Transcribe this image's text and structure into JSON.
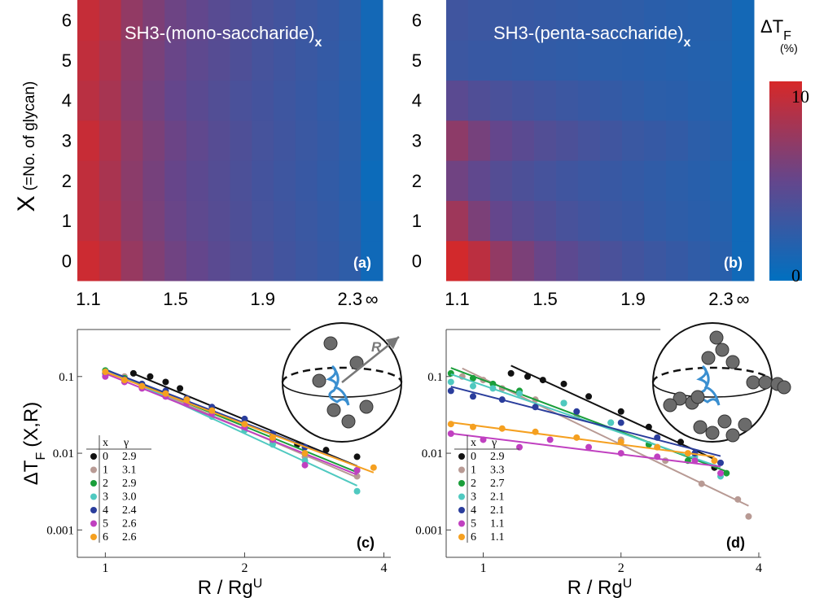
{
  "chart_data": [
    {
      "type": "heatmap",
      "title": "SH3-(mono-saccharide)",
      "title_sub": "x",
      "panel_label": "(a)",
      "y_label": "X",
      "y_label_note": "(=No. of glycan)",
      "categories": [
        "1.1",
        null,
        null,
        null,
        "1.5",
        null,
        null,
        null,
        "1.9",
        null,
        null,
        null,
        "2.3",
        "∞"
      ],
      "ylim": [
        -0.5,
        6.5
      ],
      "yticks": [
        0,
        1,
        2,
        3,
        4,
        5,
        6
      ],
      "zlim": [
        0,
        10
      ],
      "values": [
        [
          9.5,
          8.8,
          7.2,
          6.2,
          5.5,
          5.0,
          4.5,
          4.1,
          3.7,
          3.3,
          3.0,
          2.7,
          2.3,
          0.8
        ],
        [
          9.0,
          8.2,
          6.8,
          5.9,
          5.2,
          4.7,
          4.3,
          3.9,
          3.5,
          3.2,
          2.9,
          2.6,
          2.2,
          0.8
        ],
        [
          9.0,
          8.0,
          6.7,
          5.8,
          5.1,
          4.6,
          4.2,
          3.8,
          3.4,
          3.1,
          2.8,
          2.5,
          2.1,
          0.6
        ],
        [
          9.3,
          8.3,
          6.9,
          6.0,
          5.3,
          4.8,
          4.3,
          3.9,
          3.5,
          3.2,
          2.9,
          2.6,
          2.2,
          0.8
        ],
        [
          8.7,
          7.9,
          6.6,
          5.7,
          5.0,
          4.5,
          4.1,
          3.7,
          3.4,
          3.1,
          2.8,
          2.5,
          2.1,
          0.9
        ],
        [
          9.0,
          8.2,
          6.8,
          5.9,
          5.2,
          4.7,
          4.3,
          3.9,
          3.5,
          3.2,
          2.9,
          2.6,
          2.2,
          1.0
        ],
        [
          9.2,
          8.5,
          7.0,
          6.1,
          5.4,
          4.9,
          4.4,
          4.0,
          3.6,
          3.3,
          3.0,
          2.7,
          2.3,
          1.0
        ]
      ]
    },
    {
      "type": "heatmap",
      "title": "SH3-(penta-saccharide)",
      "title_sub": "x",
      "panel_label": "(b)",
      "categories": [
        "1.1",
        null,
        null,
        null,
        "1.5",
        null,
        null,
        null,
        "1.9",
        null,
        null,
        null,
        "2.3",
        "∞"
      ],
      "ylim": [
        -0.5,
        6.5
      ],
      "yticks": [
        0,
        1,
        2,
        3,
        4,
        5,
        6
      ],
      "zlim": [
        0,
        10
      ],
      "colorbar": {
        "label": "ΔT",
        "label_sub": "F",
        "unit": "(%)",
        "zticks": [
          0,
          10
        ]
      },
      "values": [
        [
          9.8,
          8.8,
          7.0,
          6.0,
          5.2,
          4.6,
          4.1,
          3.7,
          3.3,
          3.0,
          2.7,
          2.4,
          2.0,
          0.8
        ],
        [
          7.5,
          6.0,
          5.0,
          4.4,
          4.0,
          3.6,
          3.3,
          3.0,
          2.8,
          2.5,
          2.3,
          2.1,
          1.8,
          0.8
        ],
        [
          5.5,
          4.8,
          4.2,
          3.8,
          3.5,
          3.2,
          3.0,
          2.8,
          2.6,
          2.4,
          2.2,
          2.0,
          1.7,
          0.8
        ],
        [
          6.8,
          5.8,
          5.0,
          4.5,
          4.1,
          3.8,
          3.5,
          3.2,
          2.9,
          2.7,
          2.5,
          2.2,
          1.9,
          0.9
        ],
        [
          4.5,
          4.0,
          3.7,
          3.4,
          3.2,
          3.0,
          2.8,
          2.6,
          2.4,
          2.2,
          2.1,
          1.9,
          1.7,
          0.9
        ],
        [
          3.0,
          2.8,
          2.7,
          2.6,
          2.5,
          2.4,
          2.3,
          2.2,
          2.1,
          2.0,
          1.9,
          1.8,
          1.6,
          1.0
        ],
        [
          3.2,
          3.0,
          2.9,
          2.8,
          2.7,
          2.6,
          2.5,
          2.4,
          2.3,
          2.1,
          2.0,
          1.9,
          1.7,
          1.0
        ]
      ]
    },
    {
      "type": "scatter",
      "panel_label": "(c)",
      "inset_label": "R",
      "y_label": "ΔT",
      "y_label_sub": "F",
      "y_label_rest": "(X,R)",
      "x_label": "R / Rg",
      "x_label_sup": "U",
      "x_log": true,
      "y_log": true,
      "xlim": [
        0.87,
        4.14
      ],
      "ylim": [
        0.00044,
        0.41
      ],
      "xticks": [
        1,
        2,
        4
      ],
      "yticks": [
        0.001,
        0.01,
        0.1
      ],
      "legend_headers": [
        "x",
        "γ"
      ],
      "series": [
        {
          "name": "0",
          "color": "#111111",
          "gamma": 2.9,
          "x": [
            1.15,
            1.25,
            1.35,
            1.45,
            1.7,
            2.0,
            2.3,
            2.6,
            3.0,
            3.5
          ],
          "values": [
            0.11,
            0.1,
            0.085,
            0.07,
            0.035,
            0.021,
            0.015,
            0.013,
            0.011,
            0.009
          ]
        },
        {
          "name": "1",
          "color": "#b89a94",
          "gamma": 3.1,
          "x": [
            1.0,
            1.1,
            1.2,
            1.35,
            1.5,
            1.7,
            2.0,
            2.3,
            2.7,
            3.5
          ],
          "values": [
            0.115,
            0.1,
            0.075,
            0.058,
            0.045,
            0.032,
            0.02,
            0.014,
            0.009,
            0.005
          ]
        },
        {
          "name": "2",
          "color": "#1a9e3a",
          "gamma": 2.9,
          "x": [
            1.0,
            1.1,
            1.2,
            1.35,
            1.5,
            1.7,
            2.0,
            2.3,
            2.7,
            3.5
          ],
          "values": [
            0.12,
            0.095,
            0.08,
            0.06,
            0.048,
            0.035,
            0.022,
            0.015,
            0.01,
            0.006
          ]
        },
        {
          "name": "3",
          "color": "#4fc9c0",
          "gamma": {
            "value": 3,
            "label": "3.0"
          },
          "x": [
            1.0,
            1.1,
            1.2,
            1.35,
            1.5,
            1.7,
            2.0,
            2.3,
            2.7,
            3.5
          ],
          "values": [
            0.115,
            0.09,
            0.072,
            0.055,
            0.045,
            0.03,
            0.02,
            0.013,
            0.008,
            0.0032
          ]
        },
        {
          "name": "4",
          "color": "#2a3d9c",
          "gamma": 2.4,
          "x": [
            1.0,
            1.1,
            1.2,
            1.35,
            1.5,
            1.7,
            2.0,
            2.3,
            2.7,
            3.5
          ],
          "values": [
            0.11,
            0.09,
            0.08,
            0.065,
            0.052,
            0.04,
            0.028,
            0.018,
            0.012,
            0.006
          ]
        },
        {
          "name": "5",
          "color": "#c040c0",
          "gamma": 2.6,
          "x": [
            1.0,
            1.1,
            1.2,
            1.35,
            1.5,
            1.7,
            2.0,
            2.3,
            2.7,
            3.5
          ],
          "values": [
            0.1,
            0.085,
            0.07,
            0.055,
            0.045,
            0.033,
            0.022,
            0.015,
            0.007,
            0.006
          ]
        },
        {
          "name": "6",
          "color": "#f5a020",
          "gamma": 2.6,
          "x": [
            1.0,
            1.1,
            1.2,
            1.35,
            1.5,
            1.7,
            2.0,
            2.3,
            2.7,
            3.8
          ],
          "values": [
            0.115,
            0.09,
            0.075,
            0.06,
            0.05,
            0.036,
            0.024,
            0.016,
            0.01,
            0.0065
          ]
        }
      ]
    },
    {
      "type": "scatter",
      "panel_label": "(d)",
      "x_label": "R / Rg",
      "x_label_sup": "U",
      "x_log": true,
      "y_log": true,
      "xlim": [
        0.83,
        4.05
      ],
      "ylim": [
        0.00044,
        0.41
      ],
      "xticks": [
        1,
        2,
        4
      ],
      "yticks": [
        0.001,
        0.01,
        0.1
      ],
      "legend_headers": [
        "x",
        "γ"
      ],
      "series": [
        {
          "name": "0",
          "color": "#111111",
          "gamma": 2.9,
          "x": [
            1.15,
            1.25,
            1.35,
            1.5,
            1.7,
            2.0,
            2.3,
            2.7,
            3.2
          ],
          "values": [
            0.11,
            0.1,
            0.09,
            0.08,
            0.055,
            0.035,
            0.022,
            0.014,
            0.0065
          ]
        },
        {
          "name": "1",
          "color": "#b89a94",
          "gamma": 3.3,
          "x": [
            0.9,
            1.0,
            1.1,
            1.3,
            1.6,
            2.0,
            2.5,
            3.0,
            3.6,
            3.8
          ],
          "values": [
            0.1,
            0.09,
            0.07,
            0.05,
            0.03,
            0.015,
            0.008,
            0.004,
            0.0025,
            0.0015
          ]
        },
        {
          "name": "2",
          "color": "#1a9e3a",
          "gamma": 2.7,
          "x": [
            0.85,
            0.95,
            1.05,
            1.2,
            1.5,
            1.9,
            2.3,
            2.8,
            3.4
          ],
          "values": [
            0.11,
            0.095,
            0.08,
            0.065,
            0.045,
            0.025,
            0.013,
            0.008,
            0.0055
          ]
        },
        {
          "name": "3",
          "color": "#4fc9c0",
          "gamma": 2.1,
          "x": [
            0.85,
            0.95,
            1.05,
            1.2,
            1.5,
            1.9,
            2.4,
            2.9,
            3.3
          ],
          "values": [
            0.085,
            0.075,
            0.07,
            0.06,
            0.045,
            0.025,
            0.012,
            0.009,
            0.005
          ]
        },
        {
          "name": "4",
          "color": "#2a3d9c",
          "gamma": 2.1,
          "x": [
            0.85,
            0.95,
            1.1,
            1.3,
            1.6,
            2.0,
            2.4,
            2.9,
            3.3
          ],
          "values": [
            0.065,
            0.055,
            0.05,
            0.04,
            0.035,
            0.025,
            0.016,
            0.01,
            0.0075
          ]
        },
        {
          "name": "5",
          "color": "#c040c0",
          "gamma": 1.1,
          "x": [
            0.85,
            1.0,
            1.2,
            1.4,
            1.7,
            2.0,
            2.4,
            2.9,
            3.3
          ],
          "values": [
            0.018,
            0.015,
            0.012,
            0.015,
            0.012,
            0.01,
            0.009,
            0.008,
            0.0055
          ]
        },
        {
          "name": "6",
          "color": "#f5a020",
          "gamma": 1.1,
          "x": [
            0.85,
            0.95,
            1.1,
            1.3,
            1.6,
            2.0,
            2.4,
            2.8,
            3.2
          ],
          "values": [
            0.024,
            0.022,
            0.021,
            0.019,
            0.016,
            0.014,
            0.012,
            0.01,
            0.008
          ]
        }
      ]
    }
  ]
}
